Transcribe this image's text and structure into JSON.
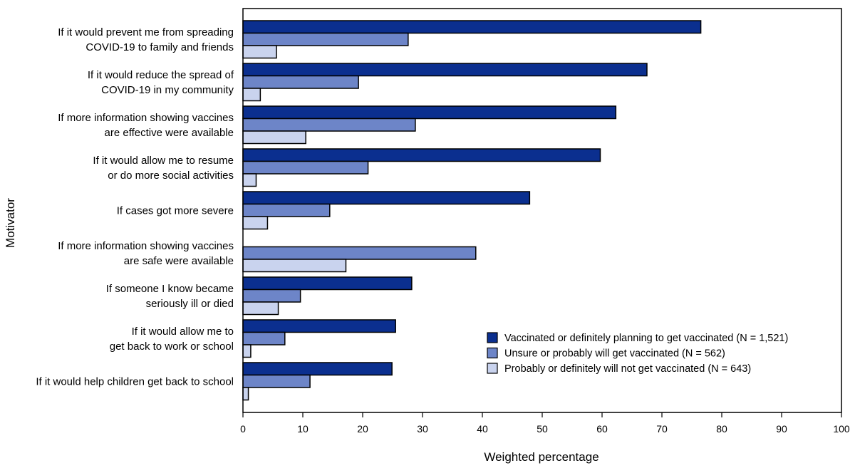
{
  "chart_data": {
    "type": "bar",
    "orientation": "horizontal",
    "title": "",
    "xlabel": "Weighted percentage",
    "ylabel": "Motivator",
    "xlim": [
      0,
      100
    ],
    "xticks": [
      0,
      10,
      20,
      30,
      40,
      50,
      60,
      70,
      80,
      90,
      100
    ],
    "grid": false,
    "legend_position": "bottom-right",
    "categories": [
      [
        "If it would prevent me from spreading",
        "COVID-19 to family and friends"
      ],
      [
        "If it would reduce the spread of",
        "COVID-19 in my community"
      ],
      [
        "If more information showing vaccines",
        "are effective were available"
      ],
      [
        "If it would allow me to resume",
        "or do more social activities"
      ],
      [
        "If cases got more severe"
      ],
      [
        "If more information showing vaccines",
        "are safe were available"
      ],
      [
        "If someone I know became",
        "seriously ill or died"
      ],
      [
        "If it would allow me to",
        "get back to work or school"
      ],
      [
        "If it would help children get back to school"
      ]
    ],
    "series": [
      {
        "name": "Vaccinated or definitely planning to get vaccinated (N = 1,521)",
        "color": "#0b2f8f",
        "values": [
          76.5,
          67.5,
          62.3,
          59.7,
          47.9,
          null,
          28.2,
          25.5,
          24.9
        ]
      },
      {
        "name": "Unsure or probably will get vaccinated (N = 562)",
        "color": "#6d85c8",
        "values": [
          27.6,
          19.3,
          28.8,
          20.9,
          14.5,
          38.9,
          9.6,
          7.0,
          11.2
        ]
      },
      {
        "name": "Probably or definitely will not get vaccinated (N = 643)",
        "color": "#c9d3ee",
        "values": [
          5.6,
          2.9,
          10.5,
          2.2,
          4.1,
          17.2,
          5.9,
          1.3,
          0.9
        ]
      }
    ]
  }
}
